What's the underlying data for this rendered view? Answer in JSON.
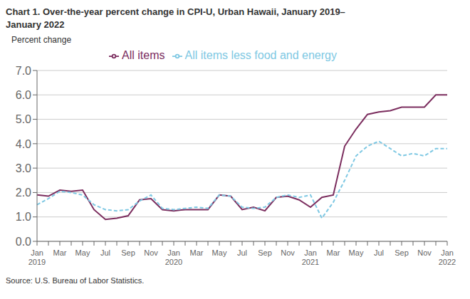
{
  "chart_data": {
    "type": "line",
    "title": "Chart 1. Over-the-year percent change in CPI-U, Urban Hawaii, January 2019–\nJanuary 2022",
    "y_label": "Percent change",
    "annotations": [
      "Source: U.S. Bureau of Labor Statistics."
    ],
    "categories": [
      "Jan\n2019",
      null,
      "Mar",
      null,
      "May",
      null,
      "Jul",
      null,
      "Sep",
      null,
      "Nov",
      null,
      "Jan\n2020",
      null,
      "Mar",
      null,
      "May",
      null,
      "Jul",
      null,
      "Sep",
      null,
      "Nov",
      null,
      "Jan\n2021",
      null,
      "Mar",
      null,
      "May",
      null,
      "Jul",
      null,
      "Sep",
      null,
      "Nov",
      null,
      "Jan\n2022"
    ],
    "series": [
      {
        "name": "All items",
        "color": "#7B2D5E",
        "line_style": "solid",
        "values": [
          1.9,
          1.85,
          2.1,
          2.05,
          2.1,
          1.3,
          0.9,
          0.95,
          1.05,
          1.7,
          1.75,
          1.3,
          1.25,
          1.3,
          1.3,
          1.3,
          1.9,
          1.85,
          1.3,
          1.4,
          1.25,
          1.8,
          1.85,
          1.7,
          1.4,
          1.8,
          1.9,
          3.9,
          4.6,
          5.2,
          5.3,
          5.35,
          5.5,
          5.5,
          5.5,
          6.0,
          6.0
        ]
      },
      {
        "name": "All items less food and energy",
        "color": "#7EC8E3",
        "line_style": "dashed",
        "values": [
          1.5,
          1.75,
          2.05,
          2.0,
          1.9,
          1.5,
          1.3,
          1.25,
          1.3,
          1.65,
          1.9,
          1.35,
          1.3,
          1.35,
          1.4,
          1.35,
          1.9,
          1.85,
          1.4,
          1.35,
          1.4,
          1.8,
          1.9,
          1.8,
          1.9,
          0.95,
          1.6,
          2.5,
          3.5,
          3.9,
          4.1,
          3.8,
          3.5,
          3.6,
          3.5,
          3.8,
          3.8
        ]
      }
    ],
    "ylim": [
      0,
      7
    ],
    "yticks": [
      {
        "value": 0,
        "label": "0.0"
      },
      {
        "value": 1,
        "label": "1.0"
      },
      {
        "value": 2,
        "label": "2.0"
      },
      {
        "value": 3,
        "label": "3.0"
      },
      {
        "value": 4,
        "label": "4.0"
      },
      {
        "value": 5,
        "label": "5.0"
      },
      {
        "value": 6,
        "label": "6.0"
      },
      {
        "value": 7,
        "label": "7.0"
      }
    ],
    "grid": true,
    "legend": "top"
  }
}
